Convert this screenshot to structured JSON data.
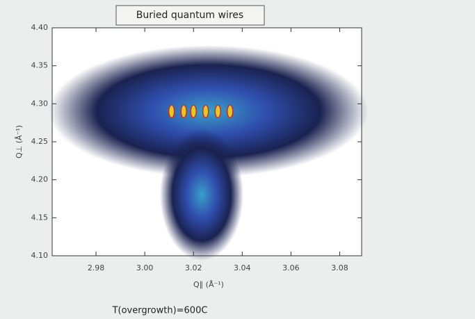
{
  "chart_data": {
    "type": "scatter",
    "title": "Buried quantum wires",
    "x_label": "Q∥ (Å⁻¹)",
    "y_label": "Q⊥ (Å⁻¹)",
    "annotation": "T(overgrowth)=600C",
    "x": [
      3.011,
      3.016,
      3.02,
      3.025,
      3.03,
      3.035
    ],
    "values": [
      4.29,
      4.29,
      4.29,
      4.29,
      4.29,
      4.29
    ],
    "color": "#e8c820",
    "xlim": [
      2.962,
      3.089
    ],
    "ylim": [
      4.1,
      4.4
    ],
    "xticks": [
      2.98,
      {
        "value": 3.0,
        "label": "3.00"
      },
      3.02,
      3.04,
      3.06,
      3.08
    ],
    "yticks": [
      {
        "value": 4.1,
        "label": "4.10"
      },
      4.15,
      {
        "value": 4.2,
        "label": "4.20"
      },
      4.25,
      {
        "value": 4.3,
        "label": "4.30"
      },
      4.35,
      {
        "value": 4.4,
        "label": "4.40"
      }
    ]
  }
}
